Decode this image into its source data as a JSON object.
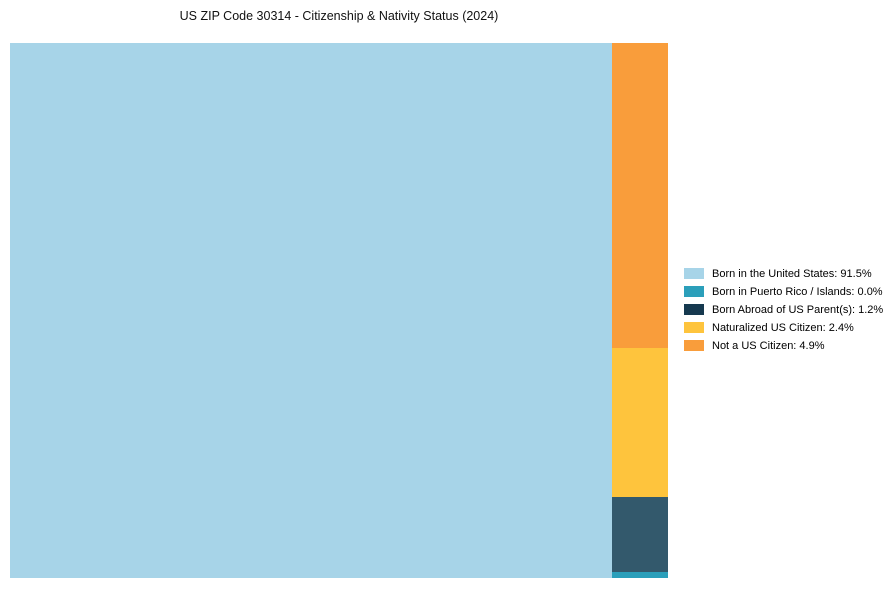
{
  "chart_data": {
    "type": "treemap",
    "title": "US ZIP Code 30314 - Citizenship & Nativity Status (2024)",
    "categories": [
      "Born in the United States",
      "Born in Puerto Rico / Islands",
      "Born Abroad of US Parent(s)",
      "Naturalized US Citizen",
      "Not a US Citizen"
    ],
    "values": [
      91.5,
      0.0,
      1.2,
      2.4,
      4.9
    ],
    "legend_position": "right",
    "main_block": {
      "label": "Born in the United States",
      "value": 91.5,
      "color": "#A7D4E8"
    },
    "side_blocks": [
      {
        "label": "Not a US Citizen",
        "value": 4.9,
        "color": "#F99D3B"
      },
      {
        "label": "Naturalized US Citizen",
        "value": 2.4,
        "color": "#FEC43D"
      },
      {
        "label": "Born Abroad of US Parent(s)",
        "value": 1.2,
        "color": "#33596C"
      },
      {
        "label": "Born in Puerto Rico / Islands",
        "value": 0.0,
        "color": "#2B9FBA"
      }
    ],
    "legend": [
      {
        "label": "Born in the United States: 91.5%",
        "color": "#A7D4E8"
      },
      {
        "label": "Born in Puerto Rico / Islands: 0.0%",
        "color": "#2B9FBA"
      },
      {
        "label": "Born Abroad of US Parent(s): 1.2%",
        "color": "#16394F"
      },
      {
        "label": "Naturalized US Citizen: 2.4%",
        "color": "#FEC43D"
      },
      {
        "label": "Not a US Citizen: 4.9%",
        "color": "#F99D3B"
      }
    ]
  }
}
